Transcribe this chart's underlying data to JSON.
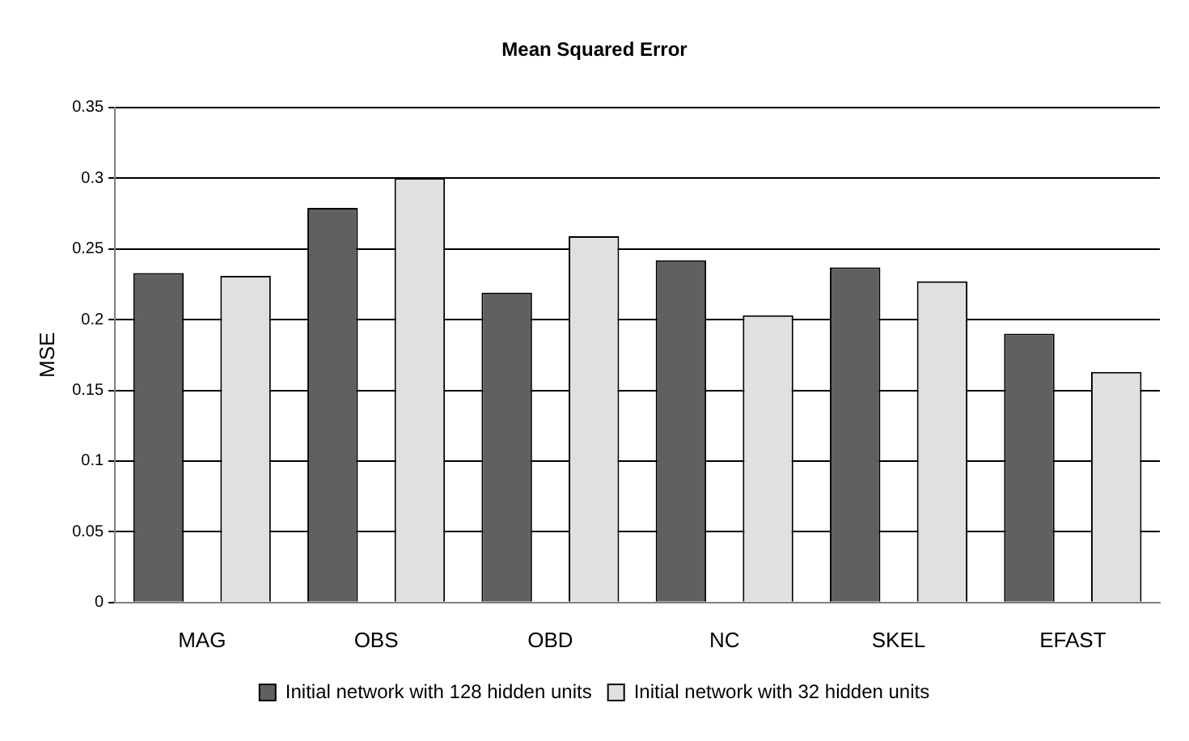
{
  "chart_data": {
    "type": "bar",
    "title": "Mean Squared Error",
    "ylabel": "MSE",
    "categories": [
      "MAG",
      "OBS",
      "OBD",
      "NC",
      "SKEL",
      "EFAST"
    ],
    "series": [
      {
        "name": "Initial network with 128 hidden units",
        "color": "#606060",
        "values": [
          0.233,
          0.279,
          0.219,
          0.242,
          0.237,
          0.19
        ]
      },
      {
        "name": "Initial network with 32 hidden units",
        "color": "#e0e0e0",
        "values": [
          0.231,
          0.3,
          0.259,
          0.203,
          0.227,
          0.163
        ]
      }
    ],
    "ylim": [
      0,
      0.35
    ],
    "yticks": [
      0,
      0.05,
      0.1,
      0.15,
      0.2,
      0.25,
      0.3,
      0.35
    ],
    "grid": "y",
    "legend": "bottom"
  }
}
